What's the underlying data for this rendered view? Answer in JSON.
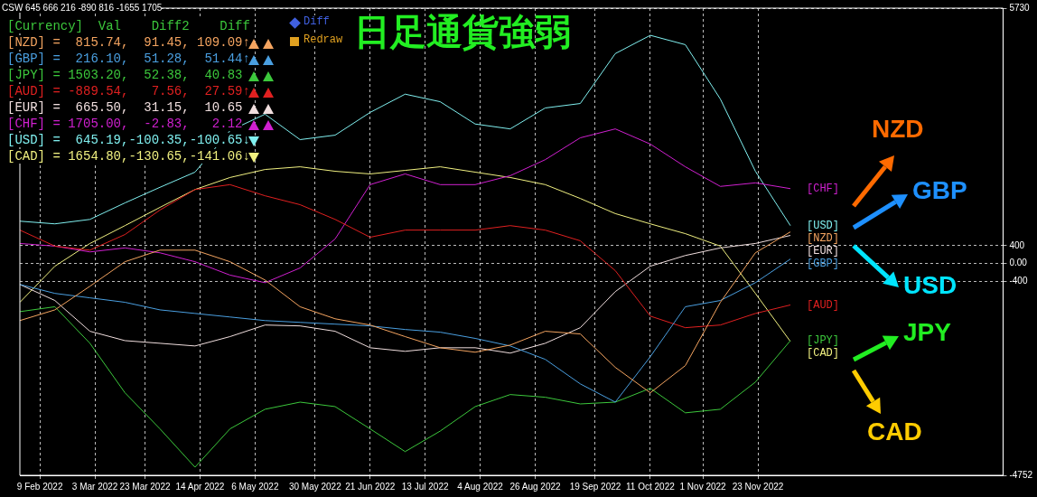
{
  "chart_data": {
    "type": "line",
    "title": "日足通貨強弱",
    "annotations": [
      "CSW 645 666 216 -890 816 -1655 1705",
      "[Currency]  Val    Diff2    Diff",
      "[NZD] =  815.74,  91.45, 109.09↑",
      "[GBP] =  216.10,  51.28,  51.44↑",
      "[JPY] = 1503.20,  52.38,  40.83",
      "[AUD] = -889.54,   7.56,  27.59↑",
      "[EUR] =  665.50,  31.15,  10.65",
      "[CHF] = 1705.00,  -2.83,   2.12",
      "[USD] =  645.19,-100.35,-100.65↓",
      "[CAD] = 1654.80,-130.65,-141.06↓",
      "Diff",
      "Redraw",
      "NZD",
      "GBP",
      "USD",
      "JPY",
      "CAD"
    ],
    "x": [
      "2022-02-01",
      "2022-02-15",
      "2022-03-01",
      "2022-03-15",
      "2022-03-29",
      "2022-04-12",
      "2022-04-26",
      "2022-05-10",
      "2022-05-24",
      "2022-06-07",
      "2022-06-21",
      "2022-07-05",
      "2022-07-19",
      "2022-08-02",
      "2022-08-16",
      "2022-08-30",
      "2022-09-13",
      "2022-09-27",
      "2022-10-11",
      "2022-10-25",
      "2022-11-08",
      "2022-11-22",
      "2022-12-06"
    ],
    "xlim": [
      "2022-02-01",
      "2023-03-01"
    ],
    "xticks": [
      {
        "value": "2022-02-09",
        "label": "9 Feb 2022"
      },
      {
        "value": "2022-03-03",
        "label": "3 Mar 2022"
      },
      {
        "value": "2022-03-23",
        "label": "23 Mar 2022"
      },
      {
        "value": "2022-04-14",
        "label": "14 Apr 2022"
      },
      {
        "value": "2022-05-06",
        "label": "6 May 2022"
      },
      {
        "value": "2022-05-30",
        "label": "30 May 2022"
      },
      {
        "value": "2022-06-21",
        "label": "21 Jun 2022"
      },
      {
        "value": "2022-07-13",
        "label": "13 Jul 2022"
      },
      {
        "value": "2022-08-04",
        "label": "4 Aug 2022"
      },
      {
        "value": "2022-08-26",
        "label": "26 Aug 2022"
      },
      {
        "value": "2022-09-19",
        "label": "19 Sep 2022"
      },
      {
        "value": "2022-10-11",
        "label": "11 Oct 2022"
      },
      {
        "value": "2022-11-01",
        "label": "1 Nov 2022"
      },
      {
        "value": "2022-11-23",
        "label": "23 Nov 2022"
      }
    ],
    "ylim": [
      -4752,
      5730
    ],
    "yticks": [
      5730,
      400,
      {
        "value": 0,
        "label": "0.00"
      },
      -400,
      -4752
    ],
    "grid": true,
    "legend": false,
    "marker": "none",
    "line_style": "solid",
    "series": [
      {
        "name": "[NZD]",
        "color": "#f4a460",
        "values": [
          -1280,
          -1040,
          -510,
          40,
          300,
          300,
          40,
          -370,
          -970,
          -1240,
          -1380,
          -1640,
          -1890,
          -1990,
          -1830,
          -1520,
          -1580,
          -2330,
          -2900,
          -2290,
          -870,
          240,
          710
        ]
      },
      {
        "name": "[GBP]",
        "color": "#4a9fe0",
        "values": [
          -470,
          -670,
          -770,
          -870,
          -1040,
          -1120,
          -1200,
          -1280,
          -1320,
          -1360,
          -1400,
          -1480,
          -1540,
          -1680,
          -1850,
          -2150,
          -2700,
          -3110,
          -2090,
          -970,
          -830,
          -430,
          100
        ]
      },
      {
        "name": "[JPY]",
        "color": "#3cc83c",
        "values": [
          -1080,
          -970,
          -1790,
          -2900,
          -3710,
          -4570,
          -3710,
          -3270,
          -3110,
          -3210,
          -3710,
          -4220,
          -3760,
          -3210,
          -2940,
          -3000,
          -3150,
          -3110,
          -2800,
          -3350,
          -3270,
          -2660,
          -1730
        ]
      },
      {
        "name": "[AUD]",
        "color": "#e02020",
        "values": [
          750,
          390,
          300,
          650,
          1200,
          1660,
          1770,
          1520,
          1320,
          990,
          590,
          750,
          750,
          750,
          850,
          750,
          510,
          -160,
          -1180,
          -1440,
          -1380,
          -1120,
          -930
        ]
      },
      {
        "name": "[EUR]",
        "color": "#f0dede",
        "values": [
          -470,
          -830,
          -1520,
          -1730,
          -1790,
          -1850,
          -1640,
          -1380,
          -1400,
          -1520,
          -1890,
          -1970,
          -1890,
          -1890,
          -2010,
          -1790,
          -1440,
          -630,
          -60,
          180,
          350,
          450,
          630
        ]
      },
      {
        "name": "[CHF]",
        "color": "#d020d0",
        "values": [
          450,
          390,
          260,
          350,
          240,
          40,
          -260,
          -430,
          -100,
          550,
          1770,
          2010,
          1770,
          1770,
          1970,
          2330,
          2820,
          3020,
          2680,
          2170,
          1730,
          1810,
          1680
        ]
      },
      {
        "name": "[USD]",
        "color": "#80f0f0",
        "values": [
          950,
          890,
          990,
          1360,
          1710,
          2050,
          2980,
          3350,
          2780,
          2880,
          3390,
          3800,
          3630,
          3130,
          3020,
          3490,
          3590,
          4710,
          5120,
          4910,
          3690,
          2070,
          850
        ]
      },
      {
        "name": "[CAD]",
        "color": "#f0f080",
        "values": [
          -870,
          -60,
          450,
          850,
          1260,
          1660,
          1930,
          2110,
          2170,
          2070,
          2010,
          2090,
          2170,
          2050,
          1930,
          1770,
          1460,
          1120,
          890,
          670,
          390,
          -670,
          -1750
        ]
      }
    ]
  }
}
